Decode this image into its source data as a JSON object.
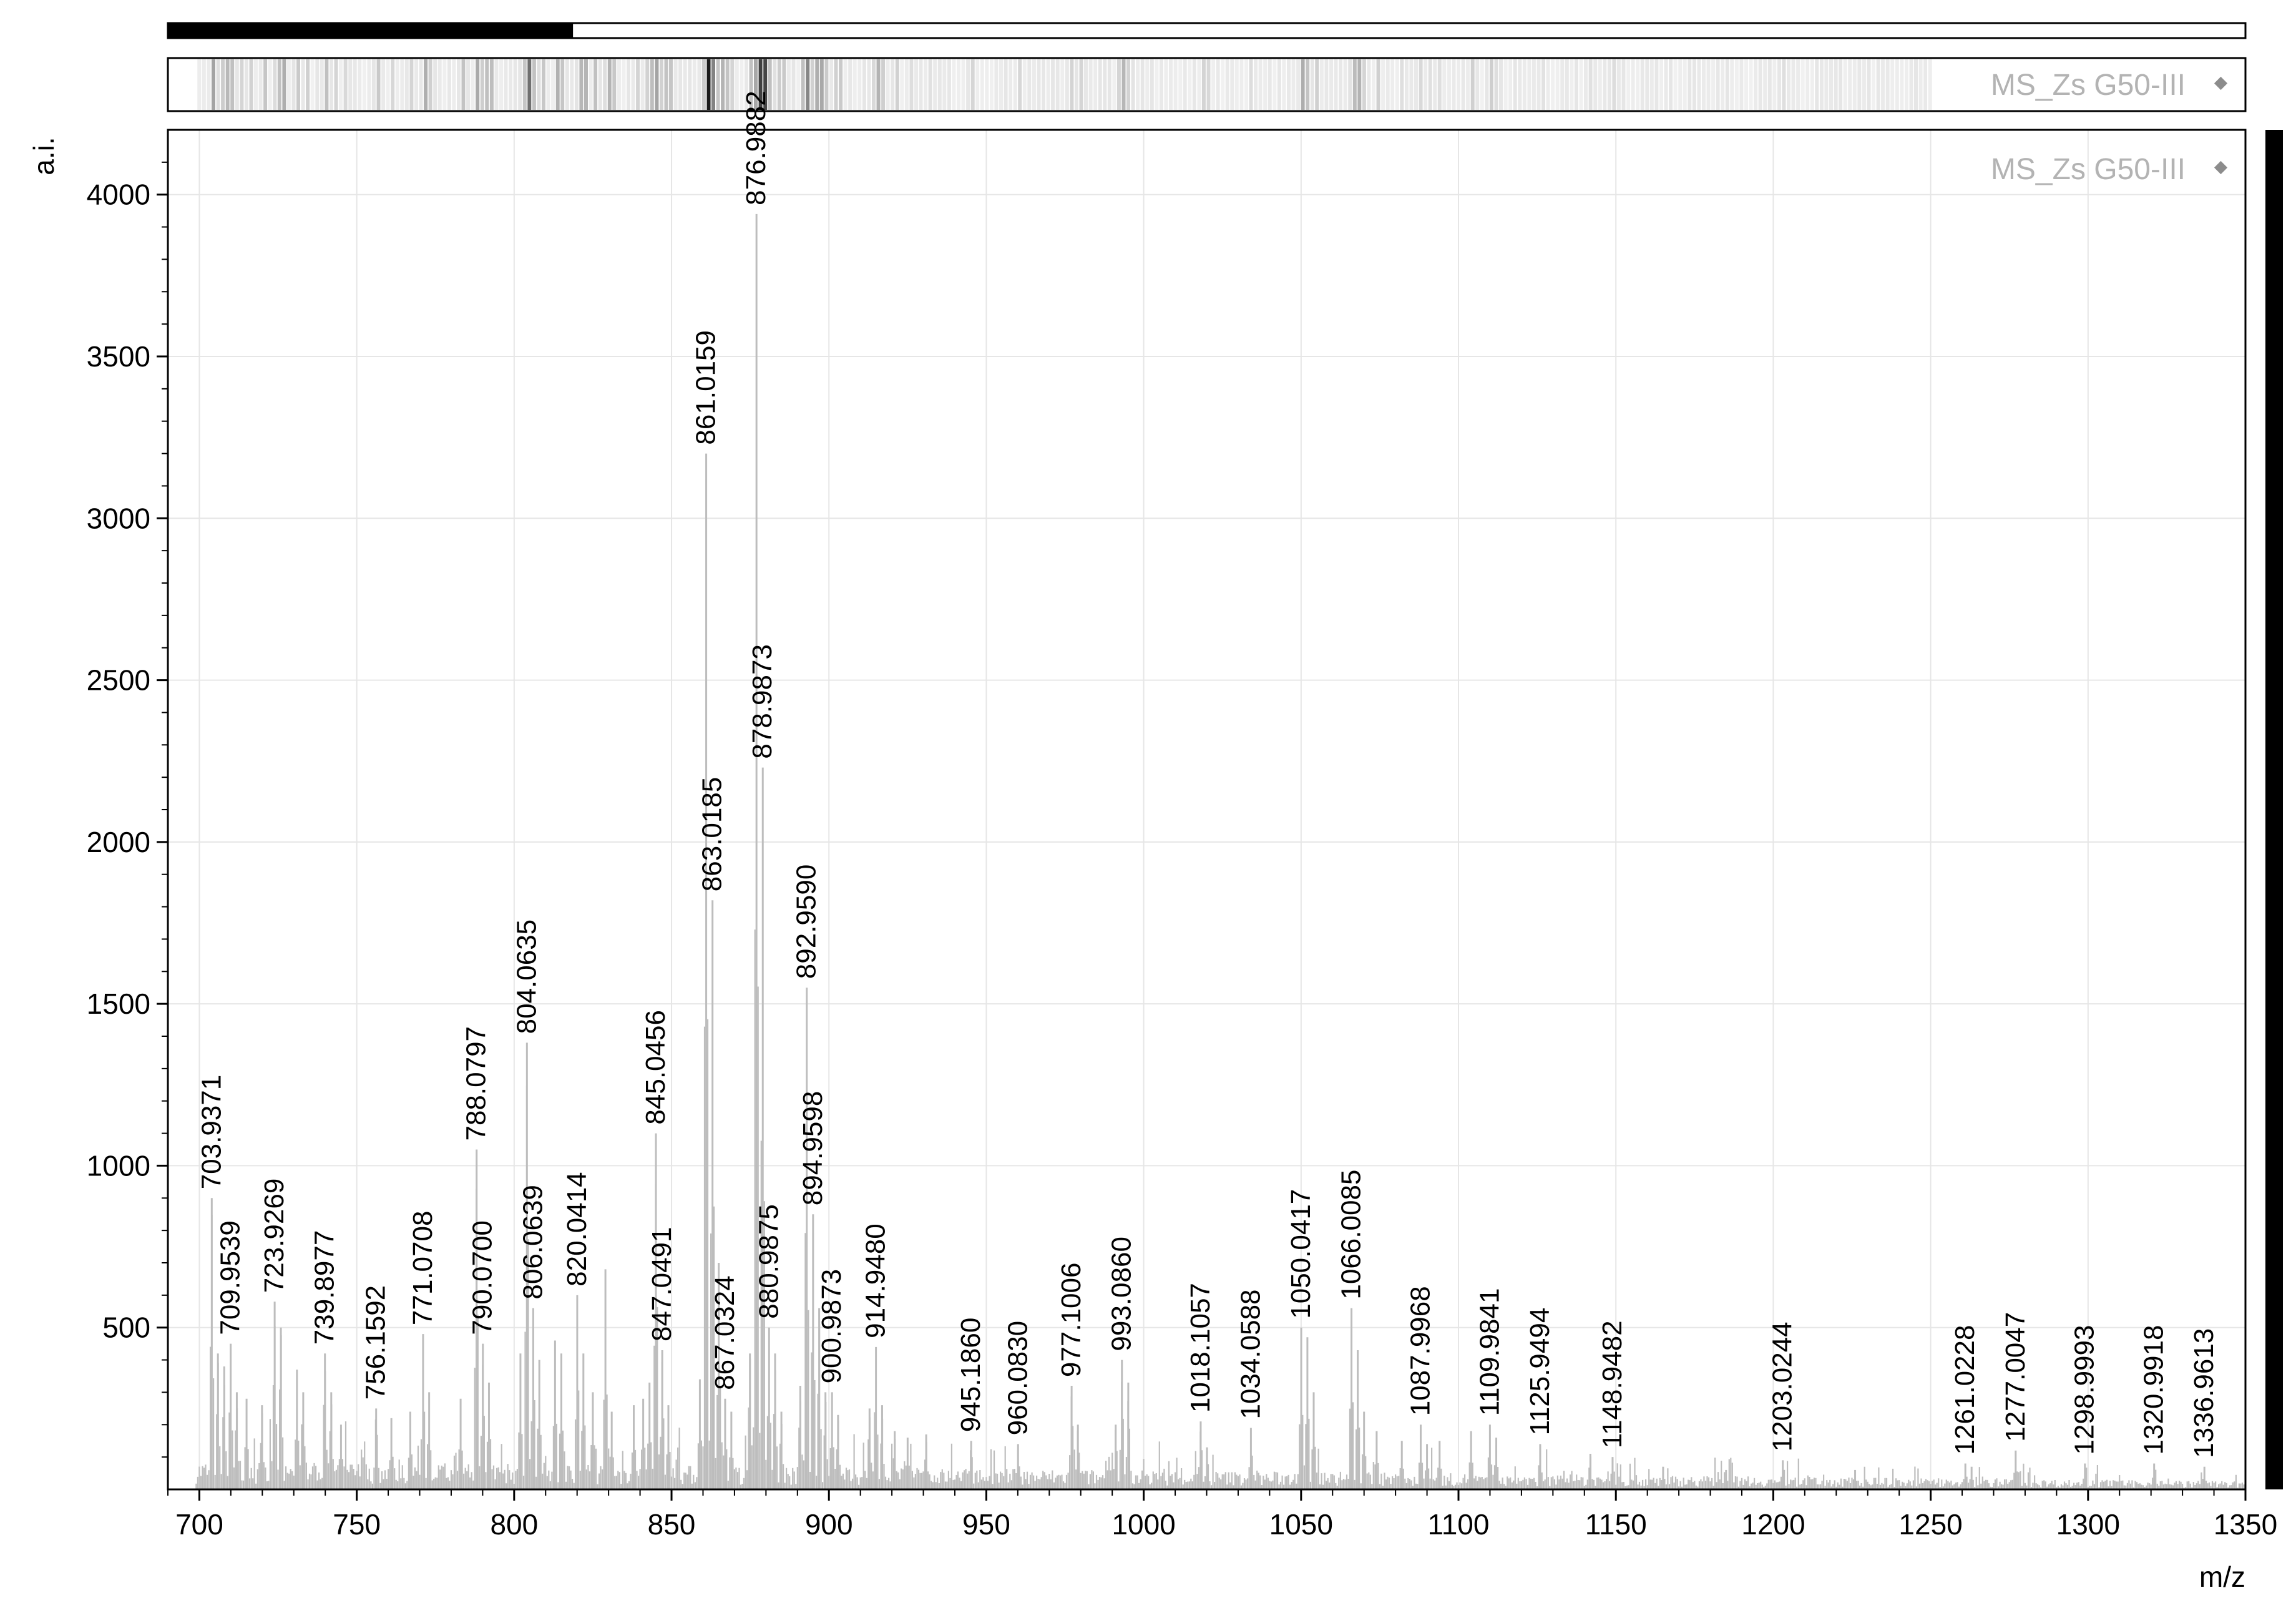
{
  "chart_data": {
    "type": "line",
    "xlabel": "m/z",
    "ylabel": "a.i.",
    "xlim": [
      690,
      1350
    ],
    "ylim": [
      0,
      4200
    ],
    "x_ticks": [
      700,
      750,
      800,
      850,
      900,
      950,
      1000,
      1050,
      1100,
      1150,
      1200,
      1250,
      1300,
      1350
    ],
    "y_ticks": [
      500,
      1000,
      1500,
      2000,
      2500,
      3000,
      3500,
      4000
    ],
    "grid": true,
    "series": [
      {
        "name": "MS_Zs G50-III",
        "color": "#bdbdbd",
        "legend_marker_color": "#8c8c8c",
        "legend_position": "top-right",
        "baseline_noise": 60,
        "peaks": [
          {
            "mz": 703.9371,
            "intensity": 900,
            "label": "703.9371"
          },
          {
            "mz": 709.9539,
            "intensity": 450,
            "label": "709.9539"
          },
          {
            "mz": 723.9269,
            "intensity": 580,
            "label": "723.9269"
          },
          {
            "mz": 739.8977,
            "intensity": 420,
            "label": "739.8977"
          },
          {
            "mz": 756.1592,
            "intensity": 250,
            "label": "756.1592"
          },
          {
            "mz": 771.0708,
            "intensity": 480,
            "label": "771.0708"
          },
          {
            "mz": 788.0797,
            "intensity": 1050,
            "label": "788.0797"
          },
          {
            "mz": 790.07,
            "intensity": 450,
            "label": "790.0700"
          },
          {
            "mz": 804.0635,
            "intensity": 1380,
            "label": "804.0635"
          },
          {
            "mz": 806.0639,
            "intensity": 560,
            "label": "806.0639"
          },
          {
            "mz": 820.0414,
            "intensity": 600,
            "label": "820.0414"
          },
          {
            "mz": 845.0456,
            "intensity": 1100,
            "label": "845.0456"
          },
          {
            "mz": 847.0491,
            "intensity": 430,
            "label": "847.0491"
          },
          {
            "mz": 861.0159,
            "intensity": 3200,
            "label": "861.0159"
          },
          {
            "mz": 863.0185,
            "intensity": 1820,
            "label": "863.0185"
          },
          {
            "mz": 867.0324,
            "intensity": 280,
            "label": "867.0324"
          },
          {
            "mz": 876.9882,
            "intensity": 3940,
            "label": "876.9882"
          },
          {
            "mz": 878.9873,
            "intensity": 2230,
            "label": "878.9873"
          },
          {
            "mz": 880.9875,
            "intensity": 500,
            "label": "880.9875"
          },
          {
            "mz": 892.959,
            "intensity": 1550,
            "label": "892.9590"
          },
          {
            "mz": 894.9598,
            "intensity": 850,
            "label": "894.9598"
          },
          {
            "mz": 900.9873,
            "intensity": 300,
            "label": "900.9873"
          },
          {
            "mz": 914.948,
            "intensity": 440,
            "label": "914.9480"
          },
          {
            "mz": 945.186,
            "intensity": 150,
            "label": "945.1860"
          },
          {
            "mz": 960.083,
            "intensity": 140,
            "label": "960.0830"
          },
          {
            "mz": 977.1006,
            "intensity": 320,
            "label": "977.1006"
          },
          {
            "mz": 993.086,
            "intensity": 400,
            "label": "993.0860"
          },
          {
            "mz": 1018.1057,
            "intensity": 210,
            "label": "1018.1057"
          },
          {
            "mz": 1034.0588,
            "intensity": 190,
            "label": "1034.0588"
          },
          {
            "mz": 1050.0417,
            "intensity": 500,
            "label": "1050.0417"
          },
          {
            "mz": 1066.0085,
            "intensity": 560,
            "label": "1066.0085"
          },
          {
            "mz": 1087.9968,
            "intensity": 200,
            "label": "1087.9968"
          },
          {
            "mz": 1109.9841,
            "intensity": 200,
            "label": "1109.9841"
          },
          {
            "mz": 1125.9494,
            "intensity": 140,
            "label": "1125.9494"
          },
          {
            "mz": 1148.9482,
            "intensity": 100,
            "label": "1148.9482"
          },
          {
            "mz": 1203.0244,
            "intensity": 90,
            "label": "1203.0244"
          },
          {
            "mz": 1261.0228,
            "intensity": 80,
            "label": "1261.0228"
          },
          {
            "mz": 1277.0047,
            "intensity": 120,
            "label": "1277.0047"
          },
          {
            "mz": 1298.9993,
            "intensity": 80,
            "label": "1298.9993"
          },
          {
            "mz": 1320.9918,
            "intensity": 80,
            "label": "1320.9918"
          },
          {
            "mz": 1336.9613,
            "intensity": 70,
            "label": "1336.9613"
          }
        ],
        "minor_peaks": [
          {
            "mz": 705.9,
            "intensity": 420
          },
          {
            "mz": 707.9,
            "intensity": 380
          },
          {
            "mz": 711.9,
            "intensity": 300
          },
          {
            "mz": 715.0,
            "intensity": 280
          },
          {
            "mz": 719.9,
            "intensity": 260
          },
          {
            "mz": 725.9,
            "intensity": 500
          },
          {
            "mz": 731.0,
            "intensity": 370
          },
          {
            "mz": 733.0,
            "intensity": 300
          },
          {
            "mz": 741.9,
            "intensity": 300
          },
          {
            "mz": 745.0,
            "intensity": 200
          },
          {
            "mz": 761.0,
            "intensity": 220
          },
          {
            "mz": 767.0,
            "intensity": 240
          },
          {
            "mz": 773.0,
            "intensity": 300
          },
          {
            "mz": 783.0,
            "intensity": 280
          },
          {
            "mz": 792.0,
            "intensity": 330
          },
          {
            "mz": 802.0,
            "intensity": 420
          },
          {
            "mz": 808.0,
            "intensity": 400
          },
          {
            "mz": 813.0,
            "intensity": 460
          },
          {
            "mz": 815.0,
            "intensity": 420
          },
          {
            "mz": 822.0,
            "intensity": 420
          },
          {
            "mz": 825.0,
            "intensity": 300
          },
          {
            "mz": 829.0,
            "intensity": 680
          },
          {
            "mz": 831.0,
            "intensity": 240
          },
          {
            "mz": 838.0,
            "intensity": 260
          },
          {
            "mz": 841.0,
            "intensity": 280
          },
          {
            "mz": 843.0,
            "intensity": 330
          },
          {
            "mz": 849.0,
            "intensity": 260
          },
          {
            "mz": 859.0,
            "intensity": 340
          },
          {
            "mz": 865.0,
            "intensity": 700
          },
          {
            "mz": 869.0,
            "intensity": 240
          },
          {
            "mz": 874.9,
            "intensity": 420
          },
          {
            "mz": 882.9,
            "intensity": 420
          },
          {
            "mz": 884.9,
            "intensity": 240
          },
          {
            "mz": 890.9,
            "intensity": 320
          },
          {
            "mz": 896.9,
            "intensity": 560
          },
          {
            "mz": 898.9,
            "intensity": 300
          },
          {
            "mz": 902.9,
            "intensity": 230
          },
          {
            "mz": 912.9,
            "intensity": 250
          },
          {
            "mz": 916.9,
            "intensity": 260
          },
          {
            "mz": 920.9,
            "intensity": 180
          },
          {
            "mz": 925.0,
            "intensity": 160
          },
          {
            "mz": 930.9,
            "intensity": 170
          },
          {
            "mz": 979.1,
            "intensity": 200
          },
          {
            "mz": 991.1,
            "intensity": 200
          },
          {
            "mz": 995.1,
            "intensity": 330
          },
          {
            "mz": 1020.1,
            "intensity": 130
          },
          {
            "mz": 1052.0,
            "intensity": 470
          },
          {
            "mz": 1054.0,
            "intensity": 300
          },
          {
            "mz": 1068.0,
            "intensity": 430
          },
          {
            "mz": 1070.0,
            "intensity": 240
          },
          {
            "mz": 1074.0,
            "intensity": 180
          },
          {
            "mz": 1082.0,
            "intensity": 150
          },
          {
            "mz": 1090.0,
            "intensity": 140
          },
          {
            "mz": 1094.0,
            "intensity": 150
          },
          {
            "mz": 1104.0,
            "intensity": 180
          },
          {
            "mz": 1112.0,
            "intensity": 160
          },
          {
            "mz": 1141.9,
            "intensity": 110
          },
          {
            "mz": 1165.0,
            "intensity": 70
          },
          {
            "mz": 1185.0,
            "intensity": 60
          },
          {
            "mz": 1226.0,
            "intensity": 60
          },
          {
            "mz": 1263.0,
            "intensity": 70
          }
        ]
      }
    ]
  },
  "overview": {
    "view_fraction": [
      0.0,
      0.195
    ]
  }
}
